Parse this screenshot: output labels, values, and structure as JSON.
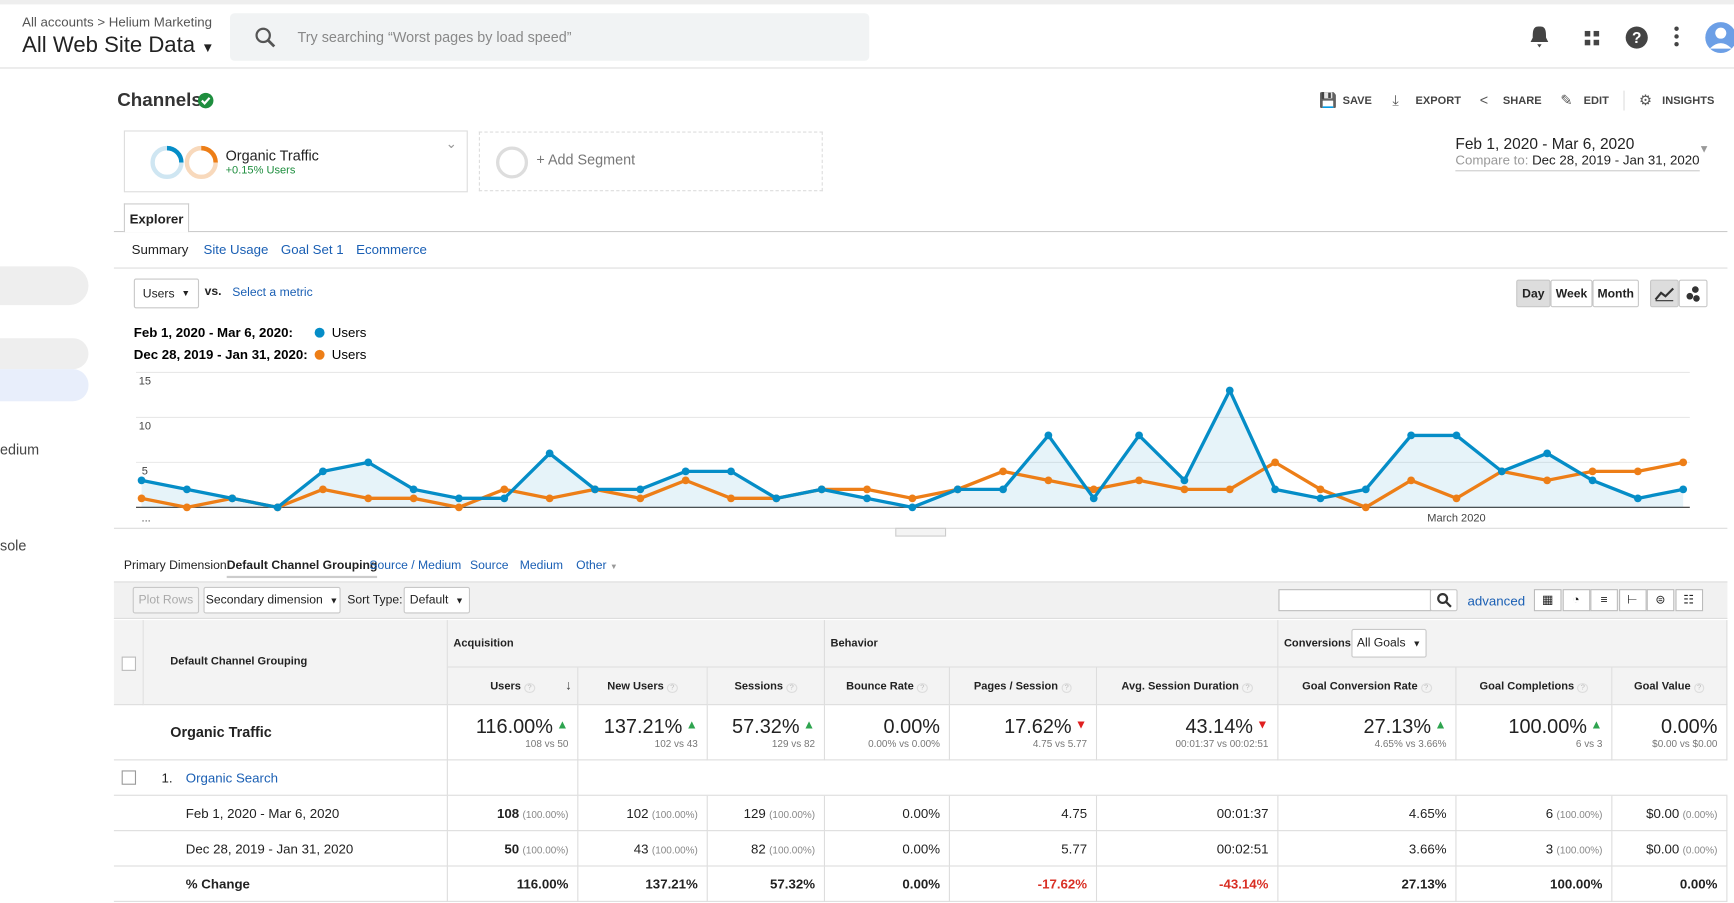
{
  "header": {
    "breadcrumb": [
      "All accounts",
      "Helium Marketing"
    ],
    "view": "All Web Site Data",
    "search_placeholder": "Try searching “Worst pages by load speed”"
  },
  "sidebar": [
    "edium",
    "sole"
  ],
  "report": {
    "title": "Channels",
    "actions": [
      "SAVE",
      "EXPORT",
      "SHARE",
      "EDIT",
      "INSIGHTS"
    ]
  },
  "segments": {
    "active": {
      "name": "Organic Traffic",
      "stat": "+0.15% Users"
    },
    "add": "+ Add Segment"
  },
  "date": {
    "range": "Feb 1, 2020 - Mar 6, 2020",
    "compare_label": "Compare to:",
    "compare_range": "Dec 28, 2019 - Jan 31, 2020"
  },
  "tabs": [
    "Explorer"
  ],
  "subtabs": [
    "Summary",
    "Site Usage",
    "Goal Set 1",
    "Ecommerce"
  ],
  "chart_controls": {
    "metric": "Users",
    "vs": "vs.",
    "select": "Select a metric",
    "periods": [
      "Day",
      "Week",
      "Month"
    ]
  },
  "chart": {
    "type": "line",
    "categories": [
      "...",
      null,
      null,
      null,
      null,
      null,
      null,
      null,
      null,
      null,
      null,
      null,
      null,
      null,
      null,
      null,
      null,
      null,
      null,
      null,
      null,
      null,
      null,
      null,
      null,
      null,
      null,
      null,
      null,
      "March 2020",
      null,
      null,
      null,
      null,
      null
    ],
    "series": [
      {
        "period": "Feb 1, 2020 - Mar 6, 2020:",
        "name": "Users",
        "color": "#058dc7",
        "values": [
          3,
          2,
          1,
          0,
          4,
          5,
          2,
          1,
          1,
          6,
          2,
          2,
          4,
          4,
          1,
          2,
          1,
          0,
          2,
          2,
          8,
          1,
          8,
          3,
          13,
          2,
          1,
          2,
          8,
          8,
          4,
          6,
          3,
          1,
          2
        ]
      },
      {
        "period": "Dec 28, 2019 - Jan 31, 2020:",
        "name": "Users",
        "color": "#ed7e17",
        "values": [
          1,
          0,
          1,
          0,
          2,
          1,
          1,
          0,
          2,
          1,
          2,
          1,
          3,
          1,
          1,
          2,
          2,
          1,
          2,
          4,
          3,
          2,
          3,
          2,
          2,
          5,
          2,
          0,
          3,
          1,
          4,
          3,
          4,
          4,
          5
        ]
      }
    ],
    "ylim": [
      0,
      15
    ],
    "yticks": [
      5,
      10,
      15
    ],
    "grid": true
  },
  "dimensions": {
    "label": "Primary Dimension:",
    "options": [
      "Default Channel Grouping",
      "Source / Medium",
      "Source",
      "Medium",
      "Other"
    ]
  },
  "table_tools": {
    "plot_rows": "Plot Rows",
    "secondary": "Secondary dimension",
    "sort_label": "Sort Type:",
    "sort": "Default",
    "advanced": "advanced"
  },
  "table": {
    "dimension_header": "Default Channel Grouping",
    "groups": [
      "Acquisition",
      "Behavior",
      "Conversions"
    ],
    "goal_selector": "All Goals",
    "columns": [
      "Users",
      "New Users",
      "Sessions",
      "Bounce Rate",
      "Pages / Session",
      "Avg. Session Duration",
      "Goal Conversion Rate",
      "Goal Completions",
      "Goal Value"
    ],
    "summary": {
      "label": "Organic Traffic",
      "cells": [
        {
          "value": "116.00%",
          "detail": "108 vs 50",
          "trend": "up"
        },
        {
          "value": "137.21%",
          "detail": "102 vs 43",
          "trend": "up"
        },
        {
          "value": "57.32%",
          "detail": "129 vs 82",
          "trend": "up"
        },
        {
          "value": "0.00%",
          "detail": "0.00% vs 0.00%",
          "trend": "none"
        },
        {
          "value": "17.62%",
          "detail": "4.75 vs 5.77",
          "trend": "down"
        },
        {
          "value": "43.14%",
          "detail": "00:01:37 vs 00:02:51",
          "trend": "down"
        },
        {
          "value": "27.13%",
          "detail": "4.65% vs 3.66%",
          "trend": "up"
        },
        {
          "value": "100.00%",
          "detail": "6 vs 3",
          "trend": "up"
        },
        {
          "value": "0.00%",
          "detail": "$0.00 vs $0.00",
          "trend": "none"
        }
      ]
    },
    "row": {
      "index": "1.",
      "name": "Organic Search"
    },
    "subrows": [
      {
        "label": "Feb 1, 2020 - Mar 6, 2020",
        "cells": [
          [
            "108",
            "(100.00%)"
          ],
          [
            "102",
            "(100.00%)"
          ],
          [
            "129",
            "(100.00%)"
          ],
          [
            "0.00%"
          ],
          [
            "4.75"
          ],
          [
            "00:01:37"
          ],
          [
            "4.65%"
          ],
          [
            "6",
            "(100.00%)"
          ],
          [
            "$0.00",
            "(0.00%)"
          ]
        ]
      },
      {
        "label": "Dec 28, 2019 - Jan 31, 2020",
        "cells": [
          [
            "50",
            "(100.00%)"
          ],
          [
            "43",
            "(100.00%)"
          ],
          [
            "82",
            "(100.00%)"
          ],
          [
            "0.00%"
          ],
          [
            "5.77"
          ],
          [
            "00:02:51"
          ],
          [
            "3.66%"
          ],
          [
            "3",
            "(100.00%)"
          ],
          [
            "$0.00",
            "(0.00%)"
          ]
        ]
      },
      {
        "label": "% Change",
        "cells": [
          [
            "116.00%"
          ],
          [
            "137.21%"
          ],
          [
            "57.32%"
          ],
          [
            "0.00%"
          ],
          [
            "-17.62%"
          ],
          [
            "-43.14%"
          ],
          [
            "27.13%"
          ],
          [
            "100.00%"
          ],
          [
            "0.00%"
          ]
        ]
      }
    ]
  }
}
